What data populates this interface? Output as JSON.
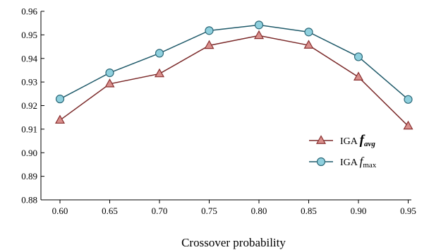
{
  "chart_data": {
    "type": "line",
    "x": [
      "0.60",
      "0.65",
      "0.70",
      "0.75",
      "0.80",
      "0.85",
      "0.90",
      "0.95"
    ],
    "xlabel": "Crossover probability",
    "ylabel": "",
    "ylim": [
      0.88,
      0.96
    ],
    "yticks": [
      "0.88",
      "0.89",
      "0.90",
      "0.91",
      "0.92",
      "0.93",
      "0.94",
      "0.95",
      "0.96"
    ],
    "grid": false,
    "legend_position": "right",
    "series": [
      {
        "legend_prefix": "IGA",
        "legend_symbol": "f",
        "legend_subscript": "avg",
        "marker": "triangle",
        "line_color": "#7b2a2a",
        "marker_fill": "#d98f8c",
        "marker_stroke": "#8a3030",
        "values": [
          0.9138,
          0.9292,
          0.9335,
          0.9455,
          0.9497,
          0.9456,
          0.9321,
          0.9113
        ]
      },
      {
        "legend_prefix": "IGA",
        "legend_symbol": "f",
        "legend_subscript": "max",
        "marker": "circle",
        "line_color": "#1f5a6a",
        "marker_fill": "#8fd0de",
        "marker_stroke": "#2b6878",
        "values": [
          0.9228,
          0.9339,
          0.9422,
          0.9518,
          0.9542,
          0.9512,
          0.9407,
          0.9226
        ]
      }
    ]
  }
}
